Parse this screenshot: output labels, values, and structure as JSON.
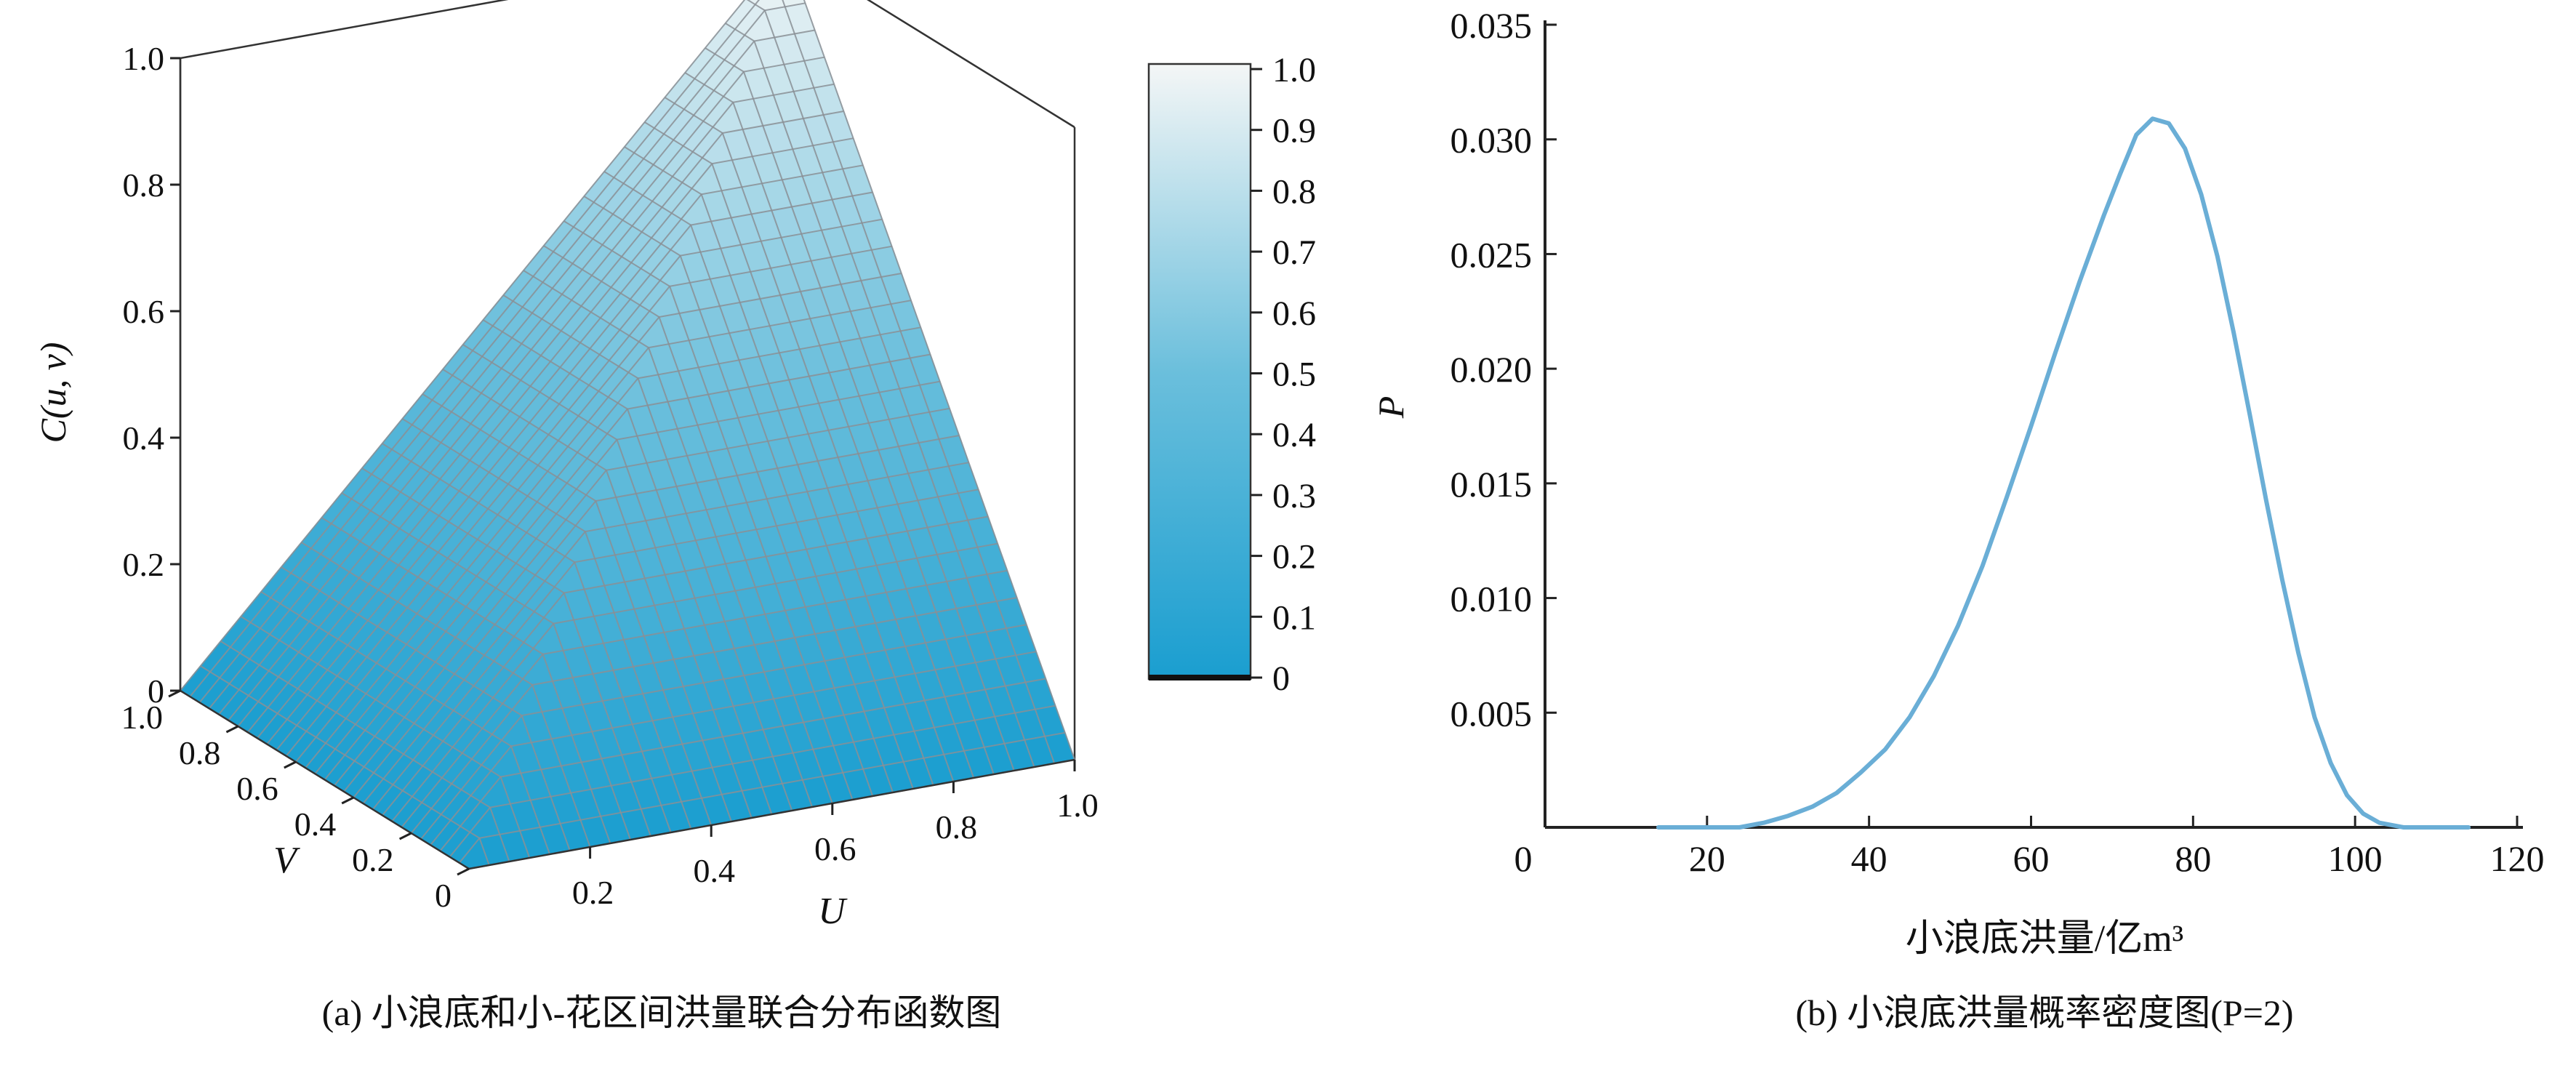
{
  "chart_data": [
    {
      "type": "surface",
      "caption": "(a) 小浪底和小-花区间洪量联合分布函数图",
      "zlabel": "C(u, v)",
      "xlabel": "U",
      "ylabel": "V",
      "z_ticks": [
        "0",
        "0.2",
        "0.4",
        "0.6",
        "0.8",
        "1.0"
      ],
      "u_ticks": [
        "0.2",
        "0.4",
        "0.6",
        "0.8",
        "1.0"
      ],
      "v_ticks": [
        "0",
        "0.2",
        "0.4",
        "0.6",
        "0.8",
        "1.0"
      ],
      "zlim": [
        0,
        1
      ],
      "function": "C(u,v) ≈ min(u, v)",
      "colorbar": {
        "ticks": [
          "0",
          "0.1",
          "0.2",
          "0.3",
          "0.4",
          "0.5",
          "0.6",
          "0.7",
          "0.8",
          "0.9",
          "1.0"
        ],
        "range": [
          0,
          1
        ],
        "color_low": "#1a9ed0",
        "color_mid": "#6bbfdc",
        "color_high": "#f4f6f6"
      },
      "grid": true
    },
    {
      "type": "line",
      "caption": "(b) 小浪底洪量概率密度图(P=2)",
      "xlabel": "小浪底洪量/亿m³",
      "ylabel": "P",
      "xlim": [
        0,
        120
      ],
      "ylim": [
        0,
        0.035
      ],
      "x_ticks": [
        "0",
        "20",
        "40",
        "60",
        "80",
        "100",
        "120"
      ],
      "y_ticks": [
        "0.005",
        "0.010",
        "0.015",
        "0.020",
        "0.025",
        "0.030",
        "0.035"
      ],
      "line_color": "#6aaed6",
      "series": [
        {
          "x": [
            14,
            20,
            24,
            27,
            30,
            33,
            36,
            39,
            42,
            45,
            48,
            51,
            54,
            57,
            60,
            63,
            66,
            69,
            71,
            73,
            75,
            77,
            79,
            81,
            83,
            85,
            87,
            89,
            91,
            93,
            95,
            97,
            99,
            101,
            103,
            106,
            110,
            114
          ],
          "y": [
            0,
            0,
            0,
            0.0002,
            0.0005,
            0.0009,
            0.0015,
            0.0024,
            0.0034,
            0.0048,
            0.0066,
            0.0088,
            0.0114,
            0.0144,
            0.0175,
            0.0207,
            0.0238,
            0.0267,
            0.0285,
            0.0302,
            0.0309,
            0.0307,
            0.0296,
            0.0276,
            0.0249,
            0.0216,
            0.018,
            0.0143,
            0.0108,
            0.0076,
            0.0048,
            0.0028,
            0.0014,
            0.0006,
            0.0002,
            0,
            0,
            0
          ]
        }
      ]
    }
  ]
}
